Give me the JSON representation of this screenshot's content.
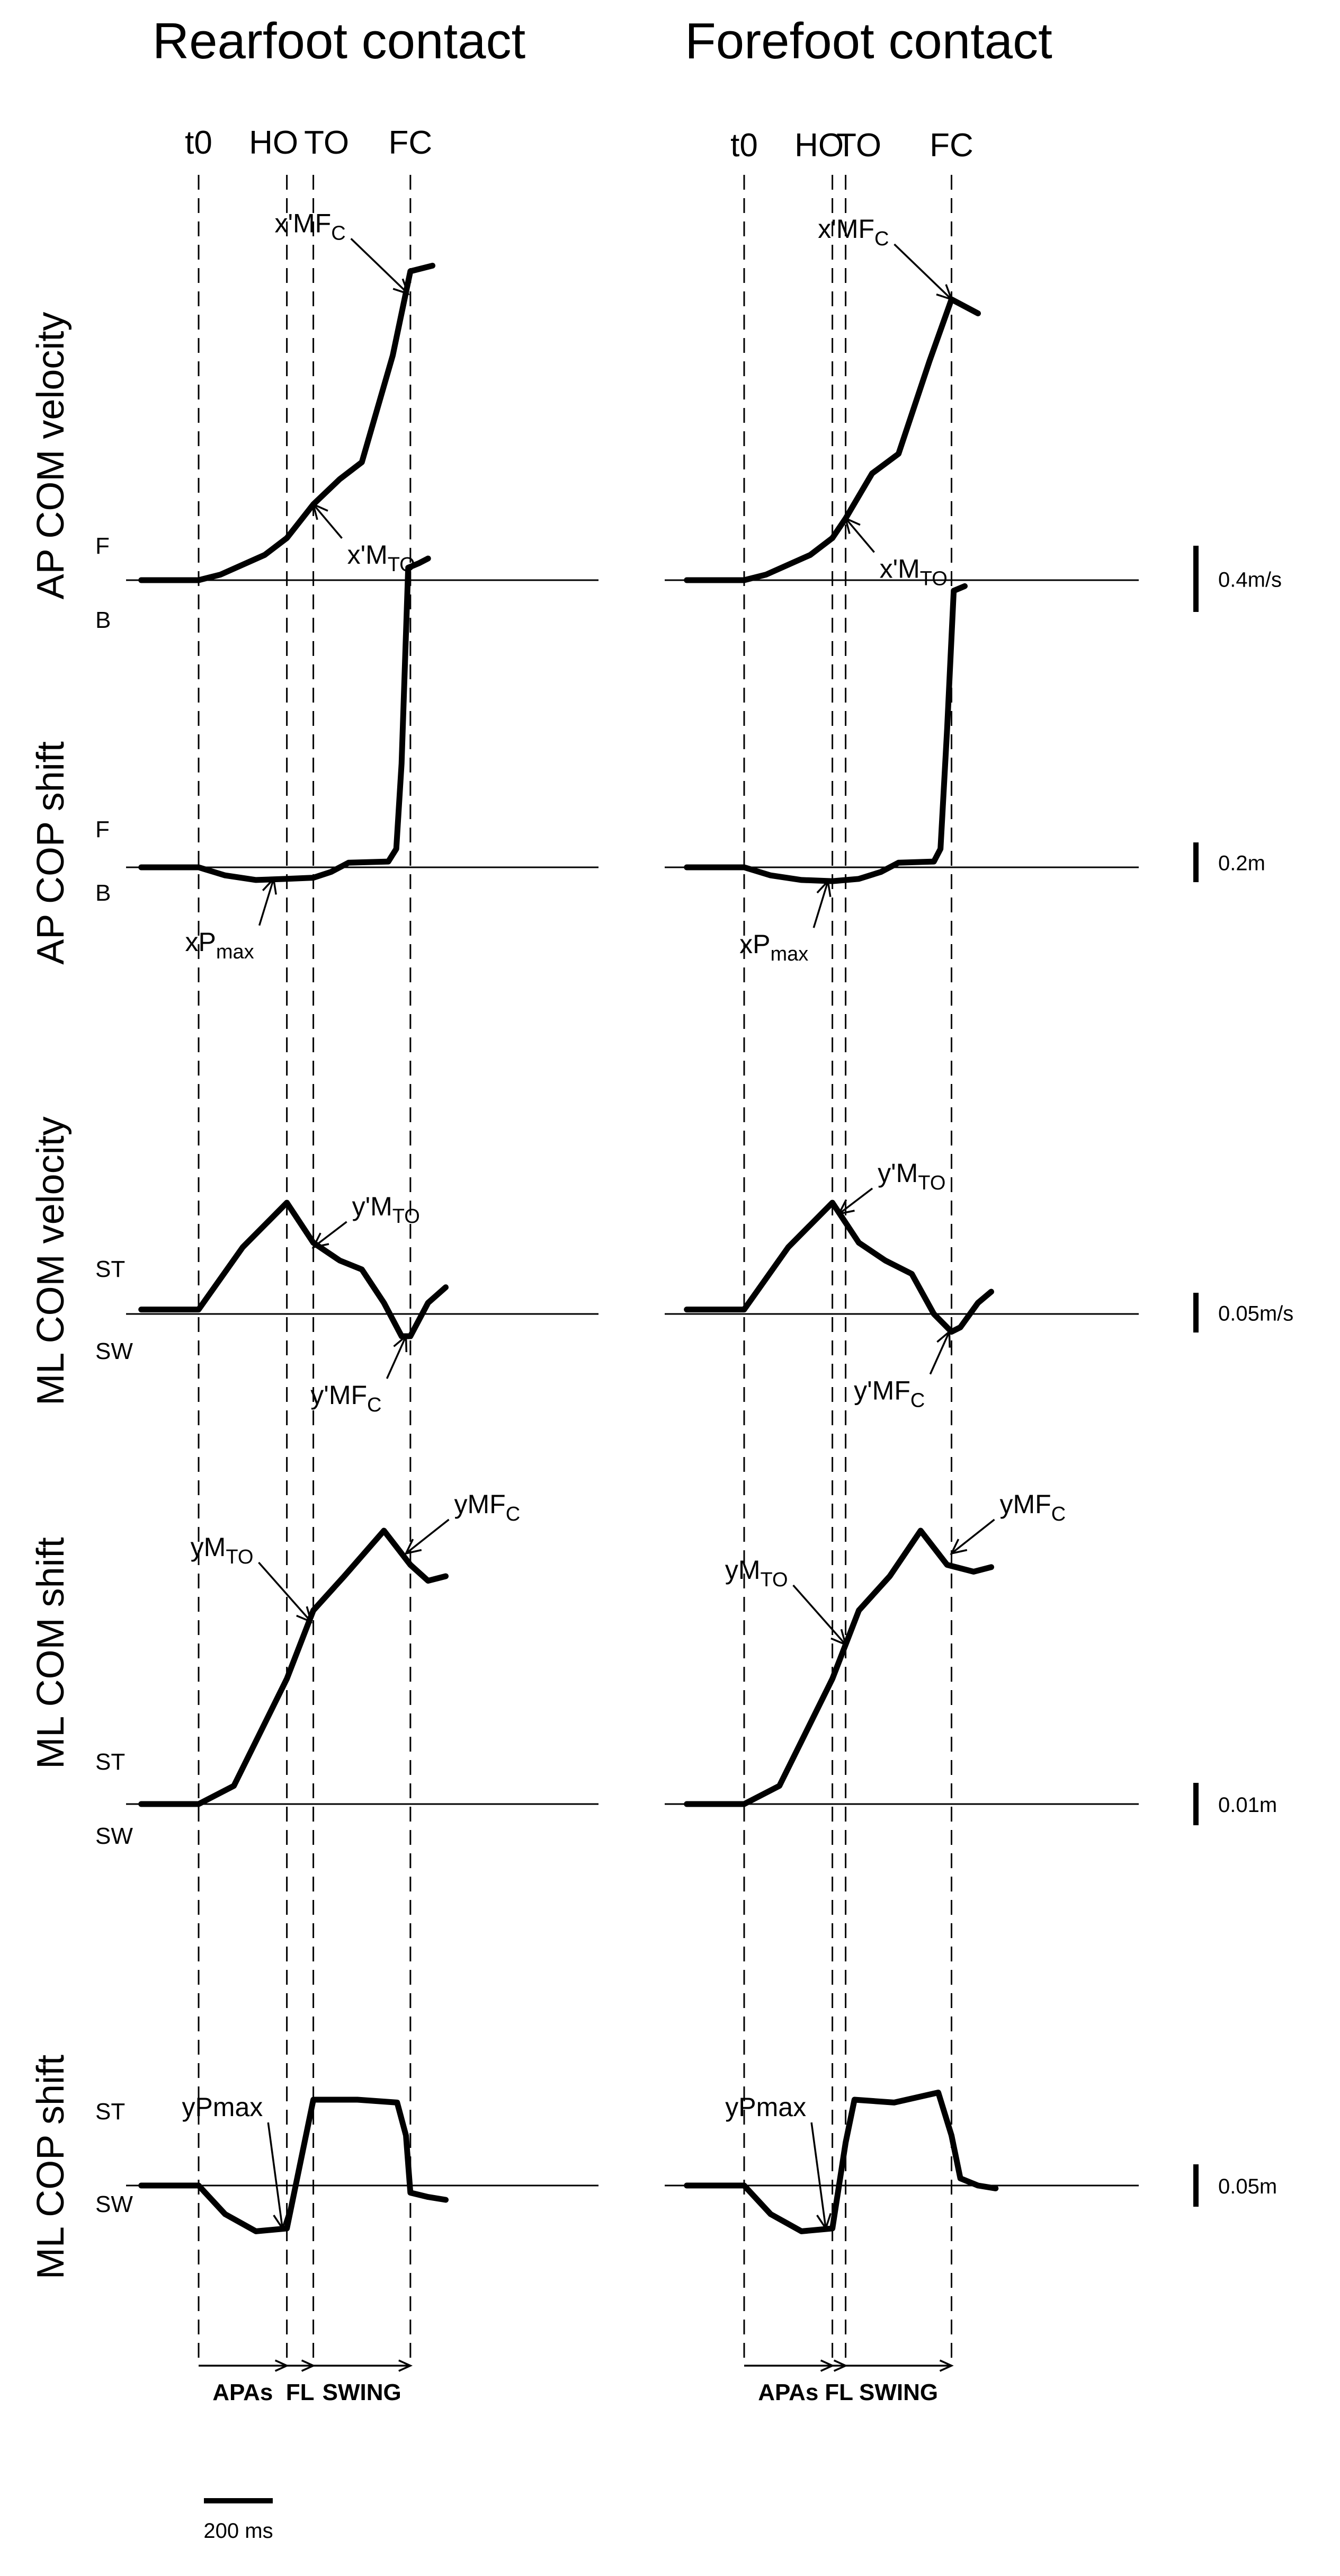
{
  "figure": {
    "time_scale_label": "200 ms"
  },
  "chart_data": [
    {
      "type": "line",
      "title": "Rearfoot contact",
      "event_labels": [
        "t0",
        "HO",
        "TO",
        "FC"
      ],
      "event_times_ms": [
        0,
        200,
        260,
        480
      ],
      "phase_labels": [
        "APAs",
        "FL",
        "SWING"
      ],
      "x_unit": "ms",
      "panels": [
        {
          "ylabel": "AP COM velocity",
          "pos_label": "F",
          "neg_label": "B",
          "scale_label": "0.4m/s",
          "scale_value": 0.4,
          "points": [
            [
              -130,
              0
            ],
            [
              0,
              0
            ],
            [
              50,
              0.02
            ],
            [
              150,
              0.09
            ],
            [
              200,
              0.15
            ],
            [
              260,
              0.27
            ],
            [
              320,
              0.36
            ],
            [
              370,
              0.42
            ],
            [
              440,
              0.8
            ],
            [
              480,
              1.1
            ],
            [
              530,
              1.12
            ]
          ],
          "annotations": [
            {
              "base": "x'MF",
              "sub": "C",
              "t": 475,
              "y": 1.02
            },
            {
              "base": "x'M",
              "sub": "TO",
              "t": 260,
              "y": 0.27
            }
          ]
        },
        {
          "ylabel": "AP COP shift",
          "pos_label": "F",
          "neg_label": "B",
          "scale_label": "0.2m",
          "scale_value": 0.2,
          "points": [
            [
              -130,
              0
            ],
            [
              0,
              0
            ],
            [
              60,
              -0.035
            ],
            [
              130,
              -0.055
            ],
            [
              200,
              -0.05
            ],
            [
              260,
              -0.045
            ],
            [
              300,
              -0.02
            ],
            [
              340,
              0.02
            ],
            [
              430,
              0.025
            ],
            [
              448,
              0.08
            ],
            [
              460,
              0.45
            ],
            [
              475,
              1.3
            ],
            [
              500,
              1.32
            ],
            [
              520,
              1.34
            ]
          ],
          "annotations": [
            {
              "base": "xP",
              "sub": "max",
              "t": 170,
              "y": -0.05
            }
          ]
        },
        {
          "ylabel": "ML COM velocity",
          "pos_label": "ST",
          "neg_label": "SW",
          "scale_label": "0.05m/s",
          "scale_value": 0.05,
          "points": [
            [
              -130,
              0.02
            ],
            [
              0,
              0.02
            ],
            [
              100,
              0.3
            ],
            [
              200,
              0.5
            ],
            [
              260,
              0.32
            ],
            [
              320,
              0.24
            ],
            [
              370,
              0.2
            ],
            [
              420,
              0.05
            ],
            [
              460,
              -0.1
            ],
            [
              480,
              -0.1
            ],
            [
              520,
              0.05
            ],
            [
              560,
              0.12
            ]
          ],
          "annotations": [
            {
              "base": "y'M",
              "sub": "TO",
              "t": 260,
              "y": 0.3
            },
            {
              "base": "y'MF",
              "sub": "C",
              "t": 470,
              "y": -0.1
            }
          ]
        },
        {
          "ylabel": "ML COM shift",
          "pos_label": "ST",
          "neg_label": "SW",
          "scale_label": "0.01m",
          "scale_value": 0.01,
          "points": [
            [
              -130,
              0
            ],
            [
              0,
              0
            ],
            [
              80,
              0.08
            ],
            [
              200,
              0.55
            ],
            [
              260,
              0.85
            ],
            [
              330,
              1.0
            ],
            [
              420,
              1.2
            ],
            [
              480,
              1.05
            ],
            [
              520,
              0.98
            ],
            [
              560,
              1.0
            ]
          ],
          "annotations": [
            {
              "base": "yM",
              "sub": "TO",
              "t": 255,
              "y": 0.8
            },
            {
              "base": "yMF",
              "sub": "C",
              "t": 470,
              "y": 1.1
            }
          ]
        },
        {
          "ylabel": "ML COP shift",
          "pos_label": "ST",
          "neg_label": "SW",
          "scale_label": "0.05m",
          "scale_value": 0.05,
          "points": [
            [
              -130,
              0
            ],
            [
              0,
              0
            ],
            [
              60,
              -0.2
            ],
            [
              130,
              -0.32
            ],
            [
              200,
              -0.3
            ],
            [
              240,
              0.3
            ],
            [
              260,
              0.6
            ],
            [
              360,
              0.6
            ],
            [
              450,
              0.58
            ],
            [
              470,
              0.35
            ],
            [
              480,
              -0.05
            ],
            [
              520,
              -0.08
            ],
            [
              560,
              -0.1
            ]
          ],
          "annotations": [
            {
              "base": "yPmax",
              "sub": "",
              "t": 190,
              "y": -0.3
            }
          ]
        }
      ]
    },
    {
      "type": "line",
      "title": "Forefoot contact",
      "event_labels": [
        "t0",
        "HO",
        "TO",
        "FC"
      ],
      "event_times_ms": [
        0,
        200,
        230,
        470
      ],
      "phase_labels": [
        "APAs",
        "FL",
        "SWING"
      ],
      "x_unit": "ms",
      "panels": [
        {
          "ylabel": "AP COM velocity",
          "pos_label": "",
          "neg_label": "",
          "scale_label": "0.4m/s",
          "scale_value": 0.4,
          "points": [
            [
              -130,
              0
            ],
            [
              0,
              0
            ],
            [
              50,
              0.02
            ],
            [
              150,
              0.09
            ],
            [
              200,
              0.15
            ],
            [
              230,
              0.22
            ],
            [
              290,
              0.38
            ],
            [
              350,
              0.45
            ],
            [
              420,
              0.78
            ],
            [
              470,
              1.0
            ],
            [
              530,
              0.95
            ]
          ],
          "annotations": [
            {
              "base": "x'MF",
              "sub": "C",
              "t": 470,
              "y": 1.0
            },
            {
              "base": "x'M",
              "sub": "TO",
              "t": 230,
              "y": 0.22
            }
          ]
        },
        {
          "ylabel": "AP COP shift",
          "pos_label": "",
          "neg_label": "",
          "scale_label": "0.2m",
          "scale_value": 0.2,
          "points": [
            [
              -130,
              0
            ],
            [
              0,
              0
            ],
            [
              60,
              -0.035
            ],
            [
              130,
              -0.055
            ],
            [
              200,
              -0.06
            ],
            [
              260,
              -0.05
            ],
            [
              310,
              -0.02
            ],
            [
              350,
              0.02
            ],
            [
              430,
              0.025
            ],
            [
              445,
              0.08
            ],
            [
              460,
              0.6
            ],
            [
              475,
              1.2
            ],
            [
              500,
              1.22
            ]
          ],
          "annotations": [
            {
              "base": "xP",
              "sub": "max",
              "t": 190,
              "y": -0.06
            }
          ]
        },
        {
          "ylabel": "ML COM velocity",
          "pos_label": "",
          "neg_label": "",
          "scale_label": "0.05m/s",
          "scale_value": 0.05,
          "points": [
            [
              -130,
              0.02
            ],
            [
              0,
              0.02
            ],
            [
              100,
              0.3
            ],
            [
              200,
              0.5
            ],
            [
              260,
              0.32
            ],
            [
              320,
              0.24
            ],
            [
              380,
              0.18
            ],
            [
              430,
              0.0
            ],
            [
              470,
              -0.08
            ],
            [
              490,
              -0.06
            ],
            [
              530,
              0.05
            ],
            [
              560,
              0.1
            ]
          ],
          "annotations": [
            {
              "base": "y'M",
              "sub": "TO",
              "t": 215,
              "y": 0.45
            },
            {
              "base": "y'MF",
              "sub": "C",
              "t": 465,
              "y": -0.08
            }
          ]
        },
        {
          "ylabel": "ML COM shift",
          "pos_label": "",
          "neg_label": "",
          "scale_label": "0.01m",
          "scale_value": 0.01,
          "points": [
            [
              -130,
              0
            ],
            [
              0,
              0
            ],
            [
              80,
              0.08
            ],
            [
              200,
              0.55
            ],
            [
              260,
              0.85
            ],
            [
              330,
              1.0
            ],
            [
              400,
              1.2
            ],
            [
              460,
              1.05
            ],
            [
              520,
              1.02
            ],
            [
              560,
              1.04
            ]
          ],
          "annotations": [
            {
              "base": "yM",
              "sub": "TO",
              "t": 230,
              "y": 0.7
            },
            {
              "base": "yMF",
              "sub": "C",
              "t": 470,
              "y": 1.1
            }
          ]
        },
        {
          "ylabel": "ML COP shift",
          "pos_label": "",
          "neg_label": "",
          "scale_label": "0.05m",
          "scale_value": 0.05,
          "points": [
            [
              -130,
              0
            ],
            [
              0,
              0
            ],
            [
              60,
              -0.2
            ],
            [
              130,
              -0.32
            ],
            [
              200,
              -0.3
            ],
            [
              230,
              0.3
            ],
            [
              250,
              0.6
            ],
            [
              340,
              0.58
            ],
            [
              440,
              0.65
            ],
            [
              470,
              0.35
            ],
            [
              490,
              0.05
            ],
            [
              530,
              0.0
            ],
            [
              570,
              -0.02
            ]
          ],
          "annotations": [
            {
              "base": "yPmax",
              "sub": "",
              "t": 185,
              "y": -0.3
            }
          ]
        }
      ]
    }
  ]
}
